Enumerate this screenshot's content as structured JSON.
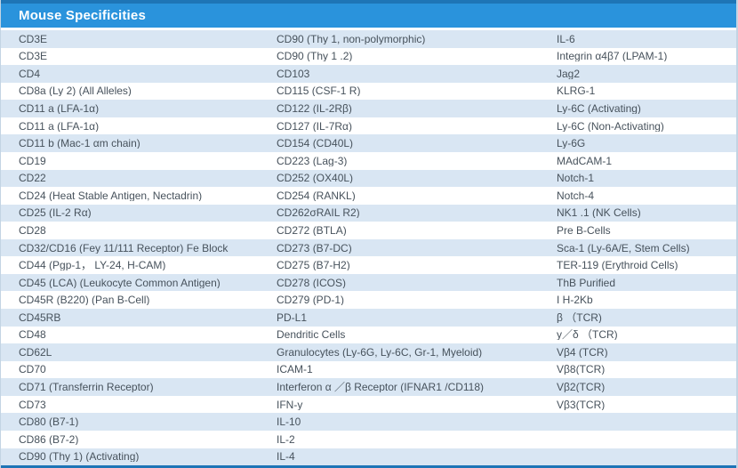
{
  "title": "Mouse Specificities",
  "colors": {
    "header_bg": "#2a93dc",
    "border_blue": "#1e75b6",
    "stripe": "#d9e6f3",
    "row_white": "#ffffff",
    "text": "#47525c",
    "title_color": "#ffffff",
    "side_border": "#c3d4e3"
  },
  "table": {
    "rows": [
      [
        "CD3E",
        "CD90 (Thy 1, non-polymorphic)",
        "IL-6"
      ],
      [
        "CD3E",
        "CD90 (Thy 1 .2)",
        "Integrin α4β7 (LPAM-1)"
      ],
      [
        "CD4",
        "CD103",
        "Jag2"
      ],
      [
        "CD8a (Ly 2) (All Alleles)",
        "CD115 (CSF-1 R)",
        "KLRG-1"
      ],
      [
        "CD11 a (LFA-1α)",
        "CD122 (IL-2Rβ)",
        "Ly-6C (Activating)"
      ],
      [
        "CD11 a (LFA-1α)",
        "CD127 (IL-7Rα)",
        "Ly-6C (Non-Activating)"
      ],
      [
        "CD11 b (Mac-1 αm chain)",
        "CD154 (CD40L)",
        "Ly-6G"
      ],
      [
        "CD19",
        "CD223 (Lag-3)",
        "MAdCAM-1"
      ],
      [
        "CD22",
        "CD252 (OX40L)",
        "Notch-1"
      ],
      [
        "CD24 (Heat Stable Antigen, Nectadrin)",
        "CD254 (RANKL)",
        "Notch-4"
      ],
      [
        "CD25 (IL-2 Rα)",
        "CD262σRAIL R2)",
        "NK1 .1 (NK Cells)"
      ],
      [
        "CD28",
        "CD272 (BTLA)",
        "Pre B-Cells"
      ],
      [
        "CD32/CD16 (Fey 11/111 Receptor) Fe Block",
        "CD273 (B7-DC)",
        "Sca-1 (Ly-6A/E, Stem Cells)"
      ],
      [
        "CD44 (Pgp-1， LY-24, H-CAM)",
        "CD275 (B7-H2)",
        "TER-119 (Erythroid Cells)"
      ],
      [
        "CD45 (LCA) (Leukocyte Common Antigen)",
        "CD278 (ICOS)",
        "ThB Purified"
      ],
      [
        "CD45R (B220) (Pan B-Cell)",
        "CD279 (PD-1)",
        "I H-2Kb"
      ],
      [
        "CD45RB",
        "PD-L1",
        "β （TCR)"
      ],
      [
        "CD48",
        "Dendritic Cells",
        "y／δ （TCR)"
      ],
      [
        "CD62L",
        "Granulocytes (Ly-6G, Ly-6C, Gr-1, Myeloid)",
        "Vβ4 (TCR)"
      ],
      [
        "CD70",
        "ICAM-1",
        "Vβ8(TCR)"
      ],
      [
        "CD71 (Transferrin Receptor)",
        "Interferon α ／β Receptor (IFNAR1 /CD118)",
        "Vβ2(TCR)"
      ],
      [
        "CD73",
        "IFN-y",
        "Vβ3(TCR)"
      ],
      [
        "CD80 (B7-1)",
        "IL-10",
        ""
      ],
      [
        "CD86 (B7-2)",
        "IL-2",
        ""
      ],
      [
        "CD90 (Thy 1) (Activating)",
        "IL-4",
        ""
      ]
    ]
  }
}
